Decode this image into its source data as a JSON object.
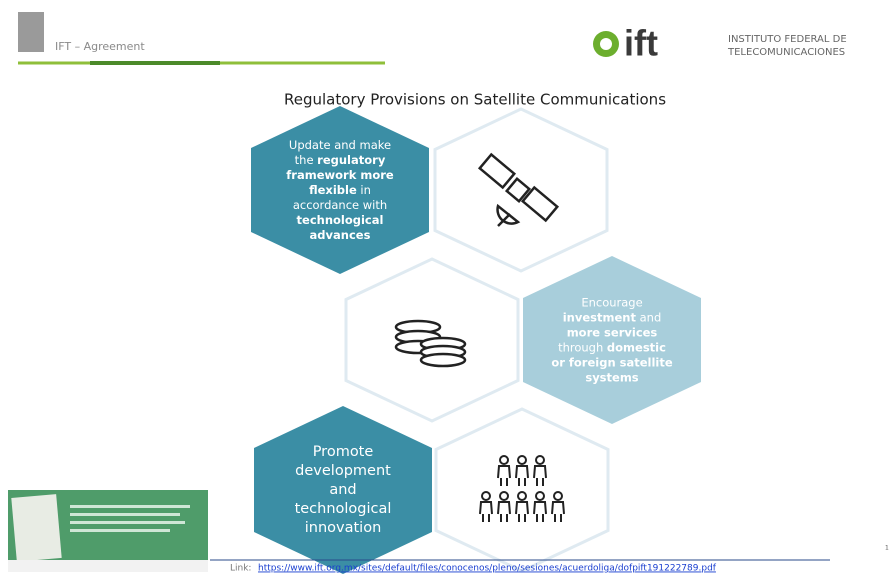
{
  "header": {
    "label": "IFT – Agreement"
  },
  "logo": {
    "mark": "ift",
    "line1": "INSTITUTO FEDERAL DE",
    "line2": "TELECOMUNICACIONES"
  },
  "title": "Regulatory Provisions on Satellite Communications",
  "hexagons": [
    {
      "style": "dark",
      "lines": [
        [
          {
            "text": "Update and make",
            "bold": false
          }
        ],
        [
          {
            "text": "the ",
            "bold": false
          },
          {
            "text": "regulatory",
            "bold": true
          }
        ],
        [
          {
            "text": "framework more",
            "bold": true
          }
        ],
        [
          {
            "text": "flexible",
            "bold": true
          },
          {
            "text": " in",
            "bold": false
          }
        ],
        [
          {
            "text": "accordance with",
            "bold": false
          }
        ],
        [
          {
            "text": "technological",
            "bold": true
          }
        ],
        [
          {
            "text": "advances",
            "bold": true
          }
        ]
      ]
    },
    {
      "style": "light",
      "lines": [
        [
          {
            "text": "Encourage",
            "bold": false
          }
        ],
        [
          {
            "text": "investment",
            "bold": true
          },
          {
            "text": " and",
            "bold": false
          }
        ],
        [
          {
            "text": "more services",
            "bold": true
          }
        ],
        [
          {
            "text": "through ",
            "bold": false
          },
          {
            "text": "domestic",
            "bold": true
          }
        ],
        [
          {
            "text": "or foreign satellite",
            "bold": true
          }
        ],
        [
          {
            "text": "systems",
            "bold": true
          }
        ]
      ]
    },
    {
      "style": "dark-large",
      "lines": [
        [
          {
            "text": "Promote",
            "bold": false
          }
        ],
        [
          {
            "text": "development",
            "bold": false
          }
        ],
        [
          {
            "text": "and",
            "bold": false
          }
        ],
        [
          {
            "text": "technological",
            "bold": false
          }
        ],
        [
          {
            "text": "innovation",
            "bold": false
          }
        ]
      ]
    }
  ],
  "footer": {
    "link_label": "Link:",
    "url": "https://www.ift.org.mx/sites/default/files/conocenos/pleno/sesiones/acuerdoliga/dofpift191222789.pdf"
  },
  "page_number": "1"
}
